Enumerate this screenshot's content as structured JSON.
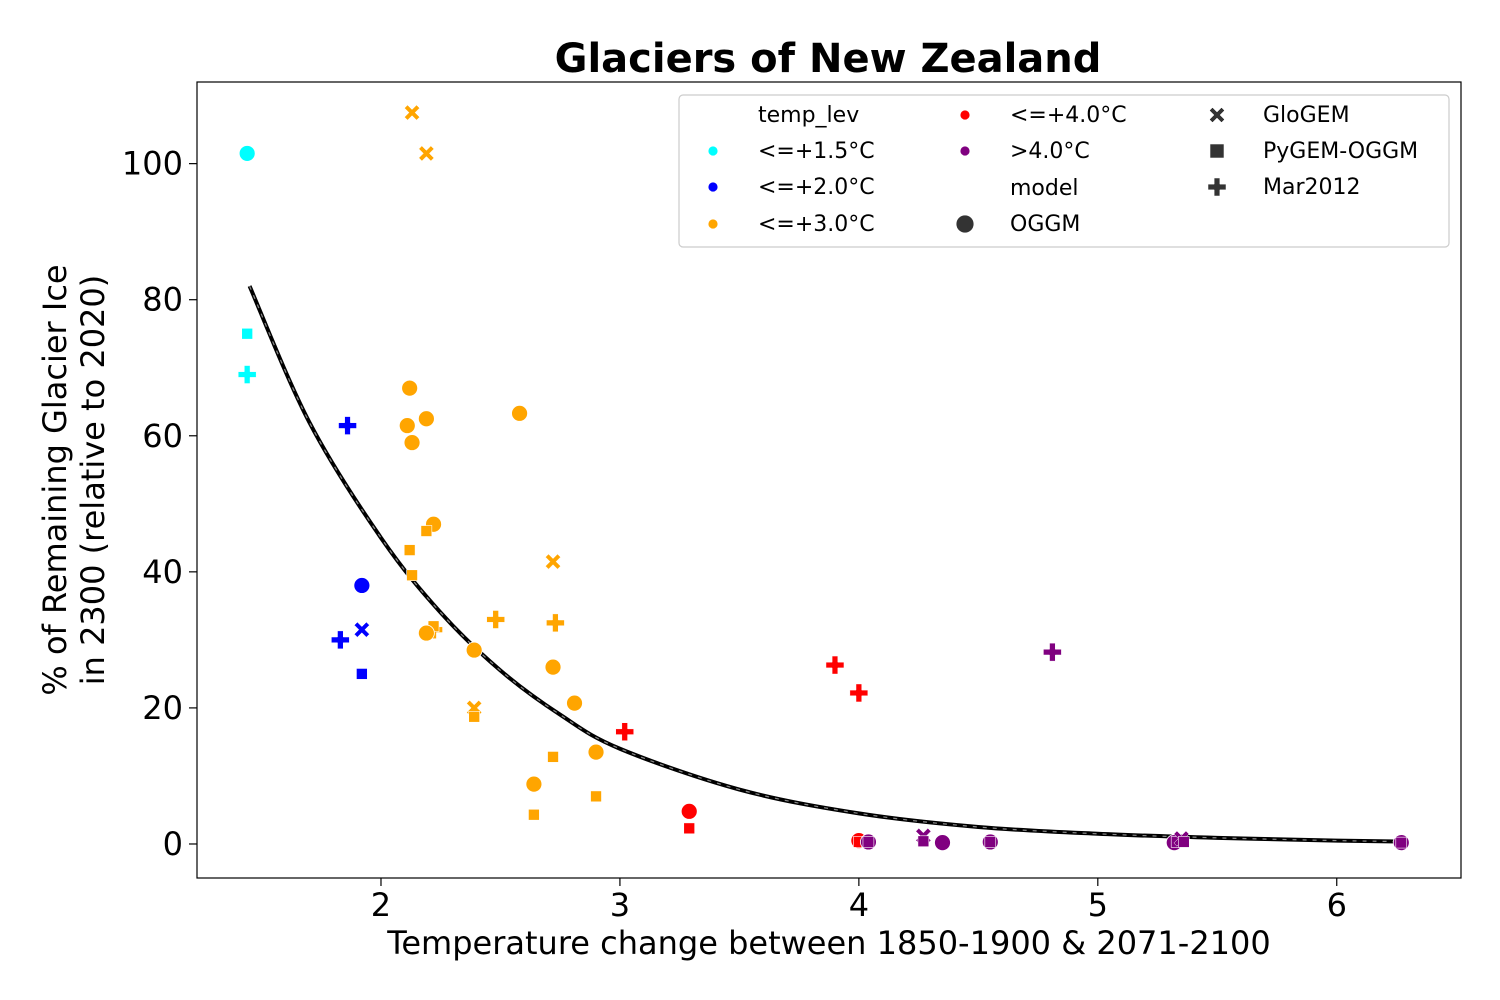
{
  "chart_data": {
    "type": "scatter",
    "title": "Glaciers of New Zealand",
    "xlabel": "Temperature change between 1850-1900 & 2071-2100",
    "ylabel": [
      "% of Remaining Glacier Ice",
      "in 2300 (relative to 2020)"
    ],
    "xlim": [
      1.23,
      6.52
    ],
    "ylim": [
      -5,
      112
    ],
    "xticks": [
      2,
      3,
      4,
      5,
      6
    ],
    "yticks": [
      0,
      20,
      40,
      60,
      80,
      100
    ],
    "grid": false,
    "legend": {
      "placement": "top-right",
      "hue_title": "temp_lev",
      "style_title": "model",
      "temp_levels": [
        {
          "label": "<=+1.5°C",
          "color": "#00ffff"
        },
        {
          "label": "<=+2.0°C",
          "color": "#0000ff"
        },
        {
          "label": "<=+3.0°C",
          "color": "#ffa500"
        },
        {
          "label": "<=+4.0°C",
          "color": "#ff0000"
        },
        {
          "label": ">4.0°C",
          "color": "#800080"
        }
      ],
      "models": [
        {
          "label": "OGGM",
          "marker": "circle"
        },
        {
          "label": "GloGEM",
          "marker": "x"
        },
        {
          "label": "PyGEM-OGGM",
          "marker": "square"
        },
        {
          "label": "Mar2012",
          "marker": "plus"
        }
      ]
    },
    "fit_curve": {
      "color": "#000000",
      "x": [
        1.45,
        1.7,
        2.0,
        2.25,
        2.5,
        2.75,
        3.0,
        3.5,
        4.0,
        4.5,
        5.0,
        5.5,
        6.0,
        6.27
      ],
      "y": [
        82,
        62,
        45,
        34,
        25.5,
        19,
        14,
        8,
        4.5,
        2.5,
        1.5,
        0.9,
        0.5,
        0.35
      ]
    },
    "points": [
      {
        "x": 1.44,
        "y": 101.5,
        "temp_lev": "<=+1.5°C",
        "model": "OGGM"
      },
      {
        "x": 1.44,
        "y": 75,
        "temp_lev": "<=+1.5°C",
        "model": "PyGEM-OGGM"
      },
      {
        "x": 1.44,
        "y": 69,
        "temp_lev": "<=+1.5°C",
        "model": "Mar2012"
      },
      {
        "x": 1.86,
        "y": 61.5,
        "temp_lev": "<=+2.0°C",
        "model": "Mar2012"
      },
      {
        "x": 1.92,
        "y": 38,
        "temp_lev": "<=+2.0°C",
        "model": "OGGM"
      },
      {
        "x": 1.92,
        "y": 31.5,
        "temp_lev": "<=+2.0°C",
        "model": "GloGEM"
      },
      {
        "x": 1.83,
        "y": 30,
        "temp_lev": "<=+2.0°C",
        "model": "Mar2012"
      },
      {
        "x": 1.92,
        "y": 25,
        "temp_lev": "<=+2.0°C",
        "model": "PyGEM-OGGM"
      },
      {
        "x": 2.13,
        "y": 107.5,
        "temp_lev": "<=+3.0°C",
        "model": "GloGEM"
      },
      {
        "x": 2.19,
        "y": 101.5,
        "temp_lev": "<=+3.0°C",
        "model": "GloGEM"
      },
      {
        "x": 2.12,
        "y": 67,
        "temp_lev": "<=+3.0°C",
        "model": "OGGM"
      },
      {
        "x": 2.11,
        "y": 61.5,
        "temp_lev": "<=+3.0°C",
        "model": "OGGM"
      },
      {
        "x": 2.13,
        "y": 59,
        "temp_lev": "<=+3.0°C",
        "model": "OGGM"
      },
      {
        "x": 2.19,
        "y": 62.5,
        "temp_lev": "<=+3.0°C",
        "model": "OGGM"
      },
      {
        "x": 2.58,
        "y": 63.3,
        "temp_lev": "<=+3.0°C",
        "model": "OGGM"
      },
      {
        "x": 2.22,
        "y": 47,
        "temp_lev": "<=+3.0°C",
        "model": "OGGM"
      },
      {
        "x": 2.19,
        "y": 46,
        "temp_lev": "<=+3.0°C",
        "model": "PyGEM-OGGM"
      },
      {
        "x": 2.12,
        "y": 43.2,
        "temp_lev": "<=+3.0°C",
        "model": "PyGEM-OGGM"
      },
      {
        "x": 2.72,
        "y": 41.5,
        "temp_lev": "<=+3.0°C",
        "model": "GloGEM"
      },
      {
        "x": 2.13,
        "y": 39.5,
        "temp_lev": "<=+3.0°C",
        "model": "PyGEM-OGGM"
      },
      {
        "x": 2.48,
        "y": 33,
        "temp_lev": "<=+3.0°C",
        "model": "Mar2012"
      },
      {
        "x": 2.73,
        "y": 32.5,
        "temp_lev": "<=+3.0°C",
        "model": "Mar2012"
      },
      {
        "x": 2.22,
        "y": 31.5,
        "temp_lev": "<=+3.0°C",
        "model": "Mar2012"
      },
      {
        "x": 2.22,
        "y": 32,
        "temp_lev": "<=+3.0°C",
        "model": "PyGEM-OGGM"
      },
      {
        "x": 2.19,
        "y": 31,
        "temp_lev": "<=+3.0°C",
        "model": "OGGM"
      },
      {
        "x": 2.39,
        "y": 28.5,
        "temp_lev": "<=+3.0°C",
        "model": "OGGM"
      },
      {
        "x": 2.72,
        "y": 26,
        "temp_lev": "<=+3.0°C",
        "model": "OGGM"
      },
      {
        "x": 2.81,
        "y": 20.7,
        "temp_lev": "<=+3.0°C",
        "model": "OGGM"
      },
      {
        "x": 2.39,
        "y": 20,
        "temp_lev": "<=+3.0°C",
        "model": "GloGEM"
      },
      {
        "x": 2.39,
        "y": 18.7,
        "temp_lev": "<=+3.0°C",
        "model": "PyGEM-OGGM"
      },
      {
        "x": 2.9,
        "y": 13.5,
        "temp_lev": "<=+3.0°C",
        "model": "OGGM"
      },
      {
        "x": 2.72,
        "y": 12.8,
        "temp_lev": "<=+3.0°C",
        "model": "PyGEM-OGGM"
      },
      {
        "x": 2.64,
        "y": 8.8,
        "temp_lev": "<=+3.0°C",
        "model": "OGGM"
      },
      {
        "x": 2.9,
        "y": 7,
        "temp_lev": "<=+3.0°C",
        "model": "PyGEM-OGGM"
      },
      {
        "x": 2.64,
        "y": 4.3,
        "temp_lev": "<=+3.0°C",
        "model": "PyGEM-OGGM"
      },
      {
        "x": 3.02,
        "y": 16.5,
        "temp_lev": "<=+4.0°C",
        "model": "Mar2012"
      },
      {
        "x": 3.29,
        "y": 4.8,
        "temp_lev": "<=+4.0°C",
        "model": "OGGM"
      },
      {
        "x": 3.29,
        "y": 2.3,
        "temp_lev": "<=+4.0°C",
        "model": "PyGEM-OGGM"
      },
      {
        "x": 3.9,
        "y": 26.3,
        "temp_lev": "<=+4.0°C",
        "model": "Mar2012"
      },
      {
        "x": 4.0,
        "y": 22.2,
        "temp_lev": "<=+4.0°C",
        "model": "Mar2012"
      },
      {
        "x": 4.0,
        "y": 0.5,
        "temp_lev": "<=+4.0°C",
        "model": "OGGM"
      },
      {
        "x": 4.0,
        "y": 0.3,
        "temp_lev": "<=+4.0°C",
        "model": "PyGEM-OGGM"
      },
      {
        "x": 4.04,
        "y": 0.3,
        "temp_lev": ">4.0°C",
        "model": "OGGM"
      },
      {
        "x": 4.04,
        "y": 0.3,
        "temp_lev": ">4.0°C",
        "model": "PyGEM-OGGM"
      },
      {
        "x": 4.27,
        "y": 1.2,
        "temp_lev": ">4.0°C",
        "model": "GloGEM"
      },
      {
        "x": 4.27,
        "y": 0.4,
        "temp_lev": ">4.0°C",
        "model": "PyGEM-OGGM"
      },
      {
        "x": 4.35,
        "y": 0.2,
        "temp_lev": ">4.0°C",
        "model": "OGGM"
      },
      {
        "x": 4.55,
        "y": 0.3,
        "temp_lev": ">4.0°C",
        "model": "OGGM"
      },
      {
        "x": 4.55,
        "y": 0.3,
        "temp_lev": ">4.0°C",
        "model": "PyGEM-OGGM"
      },
      {
        "x": 4.81,
        "y": 28.2,
        "temp_lev": ">4.0°C",
        "model": "Mar2012"
      },
      {
        "x": 5.32,
        "y": 0.2,
        "temp_lev": ">4.0°C",
        "model": "OGGM"
      },
      {
        "x": 5.33,
        "y": 0.3,
        "temp_lev": ">4.0°C",
        "model": "PyGEM-OGGM"
      },
      {
        "x": 5.35,
        "y": 0.8,
        "temp_lev": ">4.0°C",
        "model": "GloGEM"
      },
      {
        "x": 5.36,
        "y": 0.3,
        "temp_lev": ">4.0°C",
        "model": "PyGEM-OGGM"
      },
      {
        "x": 6.27,
        "y": 0.2,
        "temp_lev": ">4.0°C",
        "model": "OGGM"
      },
      {
        "x": 6.27,
        "y": 0.2,
        "temp_lev": ">4.0°C",
        "model": "PyGEM-OGGM"
      }
    ]
  }
}
